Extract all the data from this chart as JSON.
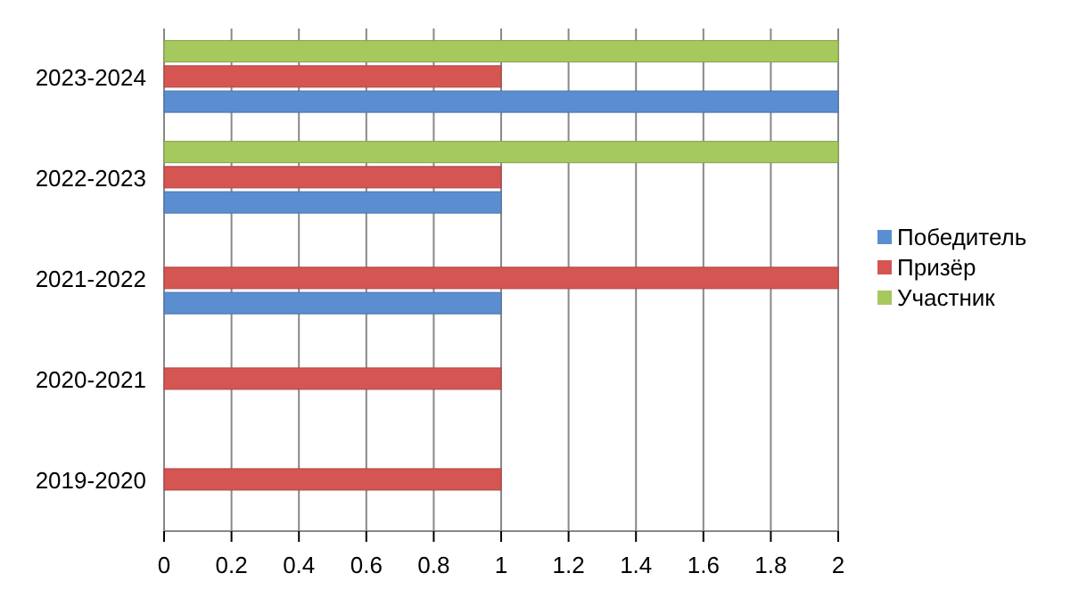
{
  "chart_data": {
    "type": "bar",
    "orientation": "horizontal",
    "categories": [
      "2023-2024",
      "2022-2023",
      "2021-2022",
      "2020-2021",
      "2019-2020"
    ],
    "series": [
      {
        "name": "Победитель",
        "color": "#5a8ed0",
        "values": [
          2,
          1,
          1,
          0,
          0
        ]
      },
      {
        "name": "Призёр",
        "color": "#d55552",
        "values": [
          1,
          1,
          2,
          1,
          1
        ]
      },
      {
        "name": "Участник",
        "color": "#a5c95c",
        "values": [
          2,
          2,
          0,
          0,
          0
        ]
      }
    ],
    "xlim": [
      0,
      2
    ],
    "xticks": [
      0,
      0.2,
      0.4,
      0.6,
      0.8,
      1,
      1.2,
      1.4,
      1.6,
      1.8,
      2
    ],
    "grid": "x",
    "legend": "right"
  }
}
